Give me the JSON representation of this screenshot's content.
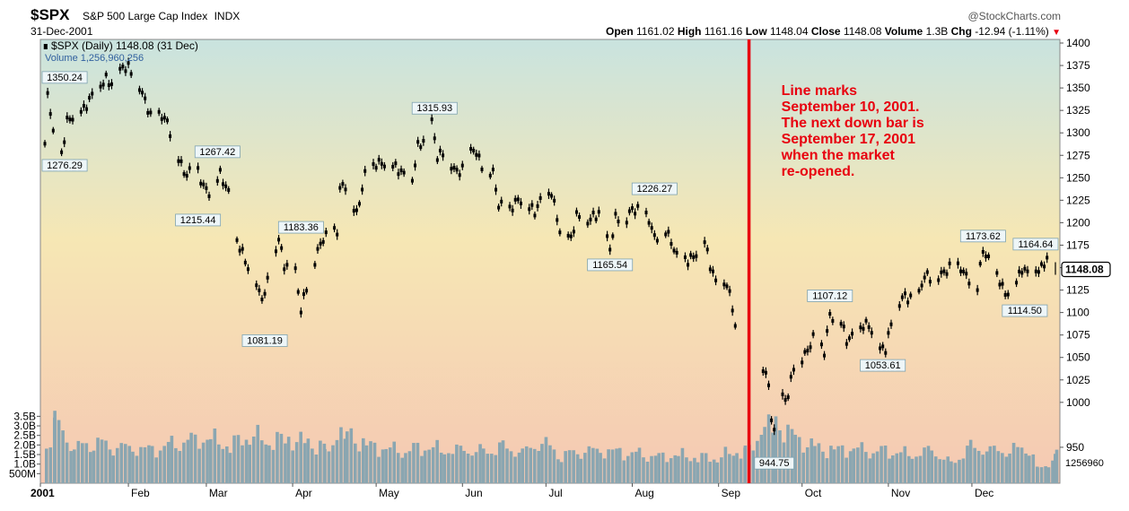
{
  "header": {
    "symbol": "$SPX",
    "name": "S&P 500 Large Cap Index",
    "exchange": "INDX",
    "date": "31-Dec-2001",
    "brand": "@StockCharts.com",
    "open_label": "Open",
    "open": "1161.02",
    "high_label": "High",
    "high": "1161.16",
    "low_label": "Low",
    "low": "1148.04",
    "close_label": "Close",
    "close": "1148.08",
    "volume_label": "Volume",
    "volume": "1.3B",
    "chg_label": "Chg",
    "chg": "-12.94 (-1.11%)"
  },
  "legend": {
    "price": "$SPX (Daily) 1148.08 (31 Dec)",
    "volume": "Volume 1,256,960,256"
  },
  "colors": {
    "price": "#000000",
    "volume": "#8aa6b1",
    "marker_line": "#e8000f",
    "annotation": "#e8000f",
    "bg_top": "#c9e3df",
    "bg_mid": "#f6e7b4",
    "bg_bottom": "#f5c8b3"
  },
  "annotation": "Line marks September 10, 2001. The next down bar is September 17, 2001 when the market re-opened.",
  "chart_data": {
    "type": "line",
    "title": "$SPX S&P 500 Large Cap Index",
    "y_axis": {
      "ticks": [
        950,
        1000,
        1025,
        1050,
        1075,
        1100,
        1125,
        1150,
        1175,
        1200,
        1225,
        1250,
        1275,
        1300,
        1325,
        1350,
        1375,
        1400
      ],
      "range": [
        910,
        1400
      ]
    },
    "x_axis": {
      "labels": [
        "2001",
        "Feb",
        "Mar",
        "Apr",
        "May",
        "Jun",
        "Jul",
        "Aug",
        "Sep",
        "Oct",
        "Nov",
        "Dec"
      ],
      "range": [
        "2001-01-02",
        "2001-12-31"
      ]
    },
    "series": [
      {
        "name": "$SPX (Daily)",
        "points": [
          [
            "2001-01-02",
            1283
          ],
          [
            "2001-01-03",
            1347
          ],
          [
            "2001-01-05",
            1298
          ],
          [
            "2001-01-08",
            1276
          ],
          [
            "2001-01-10",
            1313
          ],
          [
            "2001-01-12",
            1318
          ],
          [
            "2001-01-16",
            1326
          ],
          [
            "2001-01-19",
            1342
          ],
          [
            "2001-01-24",
            1360
          ],
          [
            "2001-01-26",
            1354
          ],
          [
            "2001-01-30",
            1373
          ],
          [
            "2001-02-01",
            1373
          ],
          [
            "2001-02-05",
            1352
          ],
          [
            "2001-02-09",
            1319
          ],
          [
            "2001-02-14",
            1318
          ],
          [
            "2001-02-16",
            1301
          ],
          [
            "2001-02-21",
            1255
          ],
          [
            "2001-02-26",
            1257
          ],
          [
            "2001-02-28",
            1240
          ],
          [
            "2001-03-02",
            1234
          ],
          [
            "2001-03-06",
            1254
          ],
          [
            "2001-03-09",
            1233
          ],
          [
            "2001-03-12",
            1180
          ],
          [
            "2001-03-14",
            1166
          ],
          [
            "2001-03-16",
            1150
          ],
          [
            "2001-03-20",
            1122
          ],
          [
            "2001-03-22",
            1117
          ],
          [
            "2001-03-23",
            1139
          ],
          [
            "2001-03-27",
            1182
          ],
          [
            "2001-03-29",
            1153
          ],
          [
            "2001-04-02",
            1145
          ],
          [
            "2001-04-04",
            1103
          ],
          [
            "2001-04-06",
            1128
          ],
          [
            "2001-04-10",
            1168
          ],
          [
            "2001-04-12",
            1183
          ],
          [
            "2001-04-17",
            1191
          ],
          [
            "2001-04-18",
            1238
          ],
          [
            "2001-04-20",
            1242
          ],
          [
            "2001-04-24",
            1209
          ],
          [
            "2001-04-27",
            1253
          ],
          [
            "2001-05-01",
            1266
          ],
          [
            "2001-05-04",
            1266
          ],
          [
            "2001-05-08",
            1262
          ],
          [
            "2001-05-10",
            1256
          ],
          [
            "2001-05-14",
            1248
          ],
          [
            "2001-05-16",
            1285
          ],
          [
            "2001-05-18",
            1291
          ],
          [
            "2001-05-21",
            1312
          ],
          [
            "2001-05-23",
            1274
          ],
          [
            "2001-05-25",
            1277
          ],
          [
            "2001-05-30",
            1256
          ],
          [
            "2001-06-01",
            1260
          ],
          [
            "2001-06-05",
            1283
          ],
          [
            "2001-06-08",
            1264
          ],
          [
            "2001-06-12",
            1255
          ],
          [
            "2001-06-14",
            1220
          ],
          [
            "2001-06-18",
            1214
          ],
          [
            "2001-06-20",
            1223
          ],
          [
            "2001-06-22",
            1226
          ],
          [
            "2001-06-27",
            1212
          ],
          [
            "2001-06-29",
            1224
          ],
          [
            "2001-07-03",
            1234
          ],
          [
            "2001-07-06",
            1191
          ],
          [
            "2001-07-10",
            1182
          ],
          [
            "2001-07-12",
            1208
          ],
          [
            "2001-07-16",
            1202
          ],
          [
            "2001-07-18",
            1207
          ],
          [
            "2001-07-20",
            1210
          ],
          [
            "2001-07-24",
            1171
          ],
          [
            "2001-07-26",
            1205
          ],
          [
            "2001-07-30",
            1205
          ],
          [
            "2001-08-01",
            1215
          ],
          [
            "2001-08-03",
            1214
          ],
          [
            "2001-08-07",
            1204
          ],
          [
            "2001-08-09",
            1183
          ],
          [
            "2001-08-13",
            1191
          ],
          [
            "2001-08-15",
            1179
          ],
          [
            "2001-08-17",
            1162
          ],
          [
            "2001-08-21",
            1158
          ],
          [
            "2001-08-23",
            1162
          ],
          [
            "2001-08-27",
            1179
          ],
          [
            "2001-08-29",
            1153
          ],
          [
            "2001-08-31",
            1134
          ],
          [
            "2001-09-04",
            1132
          ],
          [
            "2001-09-06",
            1106
          ],
          [
            "2001-09-07",
            1085
          ],
          [
            "2001-09-10",
            1092
          ],
          [
            "2001-09-17",
            1039
          ],
          [
            "2001-09-18",
            1032
          ],
          [
            "2001-09-19",
            1016
          ],
          [
            "2001-09-20",
            985
          ],
          [
            "2001-09-21",
            966
          ],
          [
            "2001-09-24",
            1004
          ],
          [
            "2001-09-26",
            1007
          ],
          [
            "2001-09-28",
            1041
          ],
          [
            "2001-10-02",
            1052
          ],
          [
            "2001-10-05",
            1071
          ],
          [
            "2001-10-09",
            1057
          ],
          [
            "2001-10-11",
            1097
          ],
          [
            "2001-10-15",
            1090
          ],
          [
            "2001-10-17",
            1069
          ],
          [
            "2001-10-19",
            1073
          ],
          [
            "2001-10-23",
            1086
          ],
          [
            "2001-10-25",
            1086
          ],
          [
            "2001-10-29",
            1059
          ],
          [
            "2001-10-31",
            1060
          ],
          [
            "2001-11-02",
            1087
          ],
          [
            "2001-11-06",
            1118
          ],
          [
            "2001-11-08",
            1116
          ],
          [
            "2001-11-12",
            1120
          ],
          [
            "2001-11-14",
            1142
          ],
          [
            "2001-11-16",
            1138
          ],
          [
            "2001-11-20",
            1142
          ],
          [
            "2001-11-23",
            1150
          ],
          [
            "2001-11-27",
            1150
          ],
          [
            "2001-11-29",
            1140
          ],
          [
            "2001-12-03",
            1129
          ],
          [
            "2001-12-05",
            1170
          ],
          [
            "2001-12-07",
            1158
          ],
          [
            "2001-12-11",
            1136
          ],
          [
            "2001-12-13",
            1120
          ],
          [
            "2001-12-17",
            1134
          ],
          [
            "2001-12-19",
            1149
          ],
          [
            "2001-12-21",
            1144
          ],
          [
            "2001-12-26",
            1149
          ],
          [
            "2001-12-28",
            1161
          ],
          [
            "2001-12-31",
            1148
          ]
        ]
      },
      {
        "name": "Volume",
        "unit": "billion shares",
        "axis_ticks": [
          "500M",
          "1.0B",
          "1.5B",
          "2.0B",
          "2.5B",
          "3.0B",
          "3.5B"
        ],
        "points": [
          [
            "2001-01-02",
            1.5
          ],
          [
            "2001-01-05",
            2.7
          ],
          [
            "2001-01-12",
            1.5
          ],
          [
            "2001-01-19",
            1.8
          ],
          [
            "2001-01-26",
            1.6
          ],
          [
            "2001-02-02",
            1.5
          ],
          [
            "2001-02-09",
            1.4
          ],
          [
            "2001-02-16",
            1.6
          ],
          [
            "2001-02-23",
            1.8
          ],
          [
            "2001-03-02",
            1.9
          ],
          [
            "2001-03-09",
            1.6
          ],
          [
            "2001-03-16",
            2.1
          ],
          [
            "2001-03-23",
            1.8
          ],
          [
            "2001-03-30",
            1.9
          ],
          [
            "2001-04-06",
            1.7
          ],
          [
            "2001-04-12",
            1.5
          ],
          [
            "2001-04-20",
            2.1
          ],
          [
            "2001-04-27",
            1.6
          ],
          [
            "2001-05-04",
            1.5
          ],
          [
            "2001-05-11",
            1.4
          ],
          [
            "2001-05-18",
            1.6
          ],
          [
            "2001-05-25",
            1.4
          ],
          [
            "2001-06-01",
            1.4
          ],
          [
            "2001-06-08",
            1.3
          ],
          [
            "2001-06-15",
            1.5
          ],
          [
            "2001-06-22",
            1.3
          ],
          [
            "2001-06-29",
            1.8
          ],
          [
            "2001-07-06",
            1.2
          ],
          [
            "2001-07-13",
            1.4
          ],
          [
            "2001-07-20",
            1.4
          ],
          [
            "2001-07-27",
            1.3
          ],
          [
            "2001-08-03",
            1.2
          ],
          [
            "2001-08-10",
            1.1
          ],
          [
            "2001-08-17",
            1.2
          ],
          [
            "2001-08-24",
            1.1
          ],
          [
            "2001-08-31",
            1.1
          ],
          [
            "2001-09-07",
            1.4
          ],
          [
            "2001-09-10",
            1.3
          ],
          [
            "2001-09-17",
            2.3
          ],
          [
            "2001-09-20",
            2.4
          ],
          [
            "2001-09-21",
            2.6
          ],
          [
            "2001-09-28",
            1.9
          ],
          [
            "2001-10-05",
            1.5
          ],
          [
            "2001-10-12",
            1.4
          ],
          [
            "2001-10-19",
            1.5
          ],
          [
            "2001-10-26",
            1.4
          ],
          [
            "2001-11-02",
            1.4
          ],
          [
            "2001-11-09",
            1.2
          ],
          [
            "2001-11-16",
            1.4
          ],
          [
            "2001-11-23",
            0.8
          ],
          [
            "2001-11-30",
            1.5
          ],
          [
            "2001-12-07",
            1.4
          ],
          [
            "2001-12-14",
            1.4
          ],
          [
            "2001-12-21",
            1.6
          ],
          [
            "2001-12-24",
            0.6
          ],
          [
            "2001-12-28",
            0.9
          ],
          [
            "2001-12-31",
            1.26
          ]
        ]
      }
    ],
    "value_labels": [
      {
        "date": "2001-01-02",
        "value": "1350.24",
        "kind": "high"
      },
      {
        "date": "2001-01-04",
        "value": "1276.29",
        "kind": "low"
      },
      {
        "date": "2001-03-05",
        "value": "1267.42",
        "kind": "high"
      },
      {
        "date": "2001-02-26",
        "value": "1215.44",
        "kind": "low"
      },
      {
        "date": "2001-04-04",
        "value": "1183.36",
        "kind": "high"
      },
      {
        "date": "2001-03-22",
        "value": "1081.19",
        "kind": "low"
      },
      {
        "date": "2001-05-22",
        "value": "1315.93",
        "kind": "high"
      },
      {
        "date": "2001-08-09",
        "value": "1226.27",
        "kind": "high"
      },
      {
        "date": "2001-07-24",
        "value": "1165.54",
        "kind": "low"
      },
      {
        "date": "2001-09-21",
        "value": "944.75",
        "kind": "low"
      },
      {
        "date": "2001-10-11",
        "value": "1107.12",
        "kind": "high"
      },
      {
        "date": "2001-10-30",
        "value": "1053.61",
        "kind": "low"
      },
      {
        "date": "2001-12-05",
        "value": "1173.62",
        "kind": "high"
      },
      {
        "date": "2001-12-20",
        "value": "1114.50",
        "kind": "low"
      },
      {
        "date": "2001-12-28",
        "value": "1164.64",
        "kind": "high"
      }
    ],
    "marker_line_date": "2001-09-10",
    "last_price_label": "1148.08",
    "last_volume_label": "1256960",
    "grid": false,
    "legend_position": "top-left"
  }
}
